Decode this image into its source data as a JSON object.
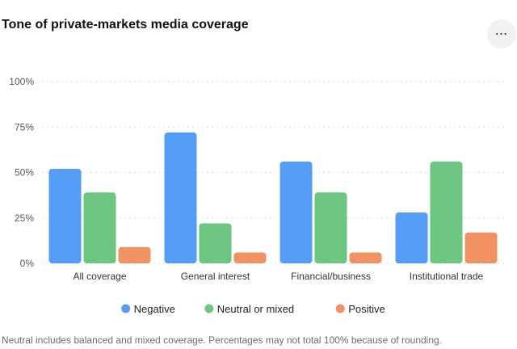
{
  "header": {
    "title": "Tone of private-markets media coverage",
    "more_label": "⋯",
    "more_icon": "more-horizontal-icon"
  },
  "footnote": "Neutral includes balanced and mixed coverage. Percentages may not total 100% because of rounding.",
  "chart_data": {
    "type": "bar",
    "title": "Tone of private-markets media coverage",
    "xlabel": "",
    "ylabel": "",
    "categories": [
      "All coverage",
      "General interest",
      "Financial/business",
      "Institutional trade"
    ],
    "series": [
      {
        "name": "Negative",
        "color": "#559cf5",
        "values": [
          52,
          72,
          56,
          28
        ]
      },
      {
        "name": "Neutral or mixed",
        "color": "#6cc682",
        "values": [
          39,
          22,
          39,
          56
        ]
      },
      {
        "name": "Positive",
        "color": "#f09262",
        "values": [
          9,
          6,
          6,
          17
        ]
      }
    ],
    "ylim": [
      0,
      100
    ],
    "yticks": [
      0,
      25,
      50,
      75,
      100
    ],
    "ytick_labels": [
      "0%",
      "25%",
      "50%",
      "75%",
      "100%"
    ],
    "grid": true,
    "legend_position": "bottom"
  }
}
